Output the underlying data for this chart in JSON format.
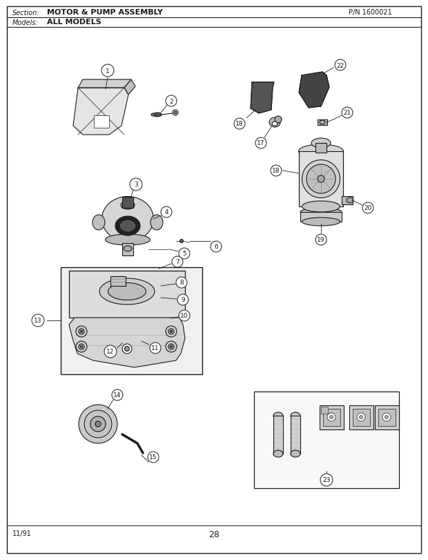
{
  "title_section": "Section:",
  "title_section_bold": "MOTOR & PUMP ASSEMBLY",
  "title_pn": "P/N 1600021",
  "title_models": "Models:",
  "title_models_bold": "ALL MODELS",
  "page_number": "28",
  "date": "11/91",
  "bg_color": "#ffffff",
  "lc": "#1a1a1a",
  "fc_light": "#e8e8e8",
  "fc_mid": "#c8c8c8",
  "fc_dark": "#999999",
  "fc_black": "#333333"
}
